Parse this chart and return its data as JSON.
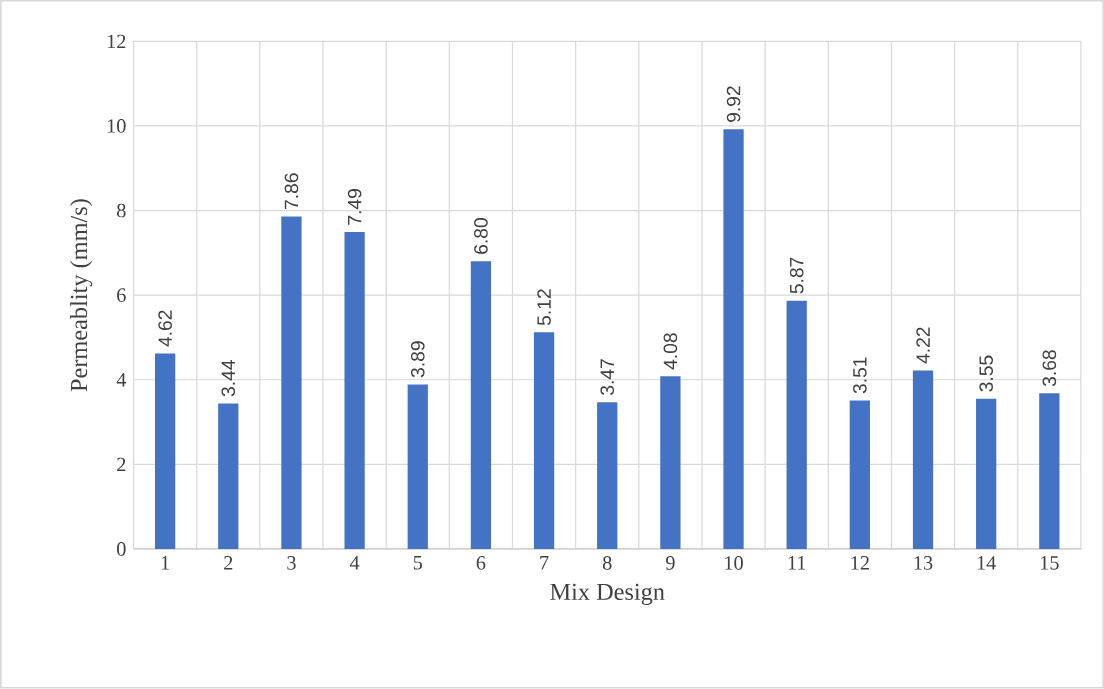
{
  "chart_data": {
    "type": "bar",
    "xlabel": "Mix Design",
    "ylabel": "Permeablity (mm/s)",
    "categories": [
      "1",
      "2",
      "3",
      "4",
      "5",
      "6",
      "7",
      "8",
      "9",
      "10",
      "11",
      "12",
      "13",
      "14",
      "15"
    ],
    "values": [
      4.62,
      3.44,
      7.86,
      7.49,
      3.89,
      6.8,
      5.12,
      3.47,
      4.08,
      9.92,
      5.87,
      3.51,
      4.22,
      3.55,
      3.68
    ],
    "value_labels": [
      "4.62",
      "3.44",
      "7.86",
      "7.49",
      "3.89",
      "6.80",
      "5.12",
      "3.47",
      "4.08",
      "9.92",
      "5.87",
      "3.51",
      "4.22",
      "3.55",
      "3.68"
    ],
    "color": "#4472c4",
    "ylim": [
      0,
      12
    ],
    "yticks": [
      0,
      2,
      4,
      6,
      8,
      10,
      12
    ],
    "grid": true
  }
}
